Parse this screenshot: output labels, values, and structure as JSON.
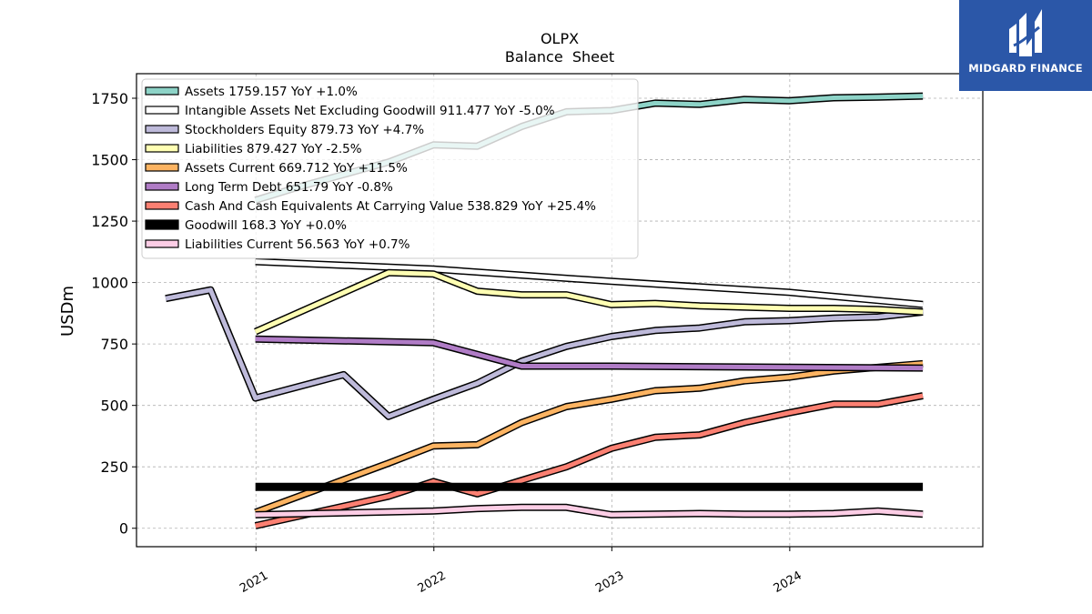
{
  "brand": {
    "name": "MIDGARD FINANCE",
    "bg": "#2b57a8"
  },
  "chart_data": {
    "type": "line",
    "title": "OLPX",
    "subtitle": "Balance  Sheet",
    "ylabel": "USDm",
    "xlabel": "",
    "ylim": [
      -75,
      1850
    ],
    "xlim": [
      "2020-05-01",
      "2025-01-31"
    ],
    "yticks": [
      0,
      250,
      500,
      750,
      1000,
      1250,
      1500,
      1750
    ],
    "xticks": [
      "2021-01-01",
      "2022-01-01",
      "2023-01-01",
      "2024-01-01"
    ],
    "xtick_labels": [
      "2021",
      "2022",
      "2023",
      "2024"
    ],
    "grid": true,
    "legend_position": "upper-left",
    "series": [
      {
        "name": "Assets",
        "legend": "Assets  1759.157 YoY +1.0%",
        "color": "#8dd3c7",
        "width": 5,
        "points": [
          [
            "2020-12-31",
            1335
          ],
          [
            "2021-03-31",
            1390
          ],
          [
            "2021-06-30",
            1440
          ],
          [
            "2021-09-30",
            1490
          ],
          [
            "2021-12-31",
            1560
          ],
          [
            "2022-03-31",
            1555
          ],
          [
            "2022-06-30",
            1635
          ],
          [
            "2022-09-30",
            1695
          ],
          [
            "2022-12-31",
            1700
          ],
          [
            "2023-03-31",
            1730
          ],
          [
            "2023-06-30",
            1725
          ],
          [
            "2023-09-30",
            1745
          ],
          [
            "2023-12-31",
            1740
          ],
          [
            "2024-03-31",
            1752
          ],
          [
            "2024-06-30",
            1755
          ],
          [
            "2024-09-30",
            1759
          ]
        ]
      },
      {
        "name": "Intangible Assets Net Excluding Goodwill",
        "legend": "Intangible Assets Net Excluding Goodwill  911.477 YoY -5.0%",
        "color": "#ffffff",
        "width": 5,
        "points": [
          [
            "2020-12-31",
            1085
          ],
          [
            "2021-12-31",
            1055
          ],
          [
            "2022-12-31",
            1005
          ],
          [
            "2023-12-31",
            960
          ],
          [
            "2024-09-30",
            911
          ]
        ]
      },
      {
        "name": "Stockholders Equity",
        "legend": "Stockholders Equity  879.73 YoY +4.7%",
        "color": "#bebada",
        "width": 5,
        "points": [
          [
            "2020-06-30",
            935
          ],
          [
            "2020-09-30",
            970
          ],
          [
            "2020-12-31",
            530
          ],
          [
            "2021-06-30",
            625
          ],
          [
            "2021-09-30",
            455
          ],
          [
            "2021-12-31",
            525
          ],
          [
            "2022-03-31",
            590
          ],
          [
            "2022-06-30",
            680
          ],
          [
            "2022-09-30",
            740
          ],
          [
            "2022-12-31",
            780
          ],
          [
            "2023-03-31",
            805
          ],
          [
            "2023-06-30",
            815
          ],
          [
            "2023-09-30",
            840
          ],
          [
            "2023-12-31",
            845
          ],
          [
            "2024-03-31",
            855
          ],
          [
            "2024-06-30",
            860
          ],
          [
            "2024-09-30",
            880
          ]
        ]
      },
      {
        "name": "Liabilities",
        "legend": "Liabilities  879.427 YoY -2.5%",
        "color": "#ffffb3",
        "width": 5,
        "points": [
          [
            "2020-12-31",
            800
          ],
          [
            "2021-09-30",
            1040
          ],
          [
            "2021-12-31",
            1035
          ],
          [
            "2022-03-31",
            965
          ],
          [
            "2022-06-30",
            950
          ],
          [
            "2022-09-30",
            950
          ],
          [
            "2022-12-31",
            910
          ],
          [
            "2023-03-31",
            915
          ],
          [
            "2023-06-30",
            905
          ],
          [
            "2023-09-30",
            900
          ],
          [
            "2023-12-31",
            895
          ],
          [
            "2024-03-31",
            895
          ],
          [
            "2024-06-30",
            890
          ],
          [
            "2024-09-30",
            880
          ]
        ]
      },
      {
        "name": "Assets Current",
        "legend": "Assets Current  669.712 YoY +11.5%",
        "color": "#fdb462",
        "width": 5,
        "points": [
          [
            "2020-12-31",
            65
          ],
          [
            "2021-09-30",
            265
          ],
          [
            "2021-12-31",
            335
          ],
          [
            "2022-03-31",
            340
          ],
          [
            "2022-06-30",
            430
          ],
          [
            "2022-09-30",
            495
          ],
          [
            "2022-12-31",
            525
          ],
          [
            "2023-03-31",
            560
          ],
          [
            "2023-06-30",
            570
          ],
          [
            "2023-09-30",
            600
          ],
          [
            "2023-12-31",
            615
          ],
          [
            "2024-03-31",
            640
          ],
          [
            "2024-06-30",
            655
          ],
          [
            "2024-09-30",
            670
          ]
        ]
      },
      {
        "name": "Long Term Debt",
        "legend": "Long Term Debt  651.79 YoY -0.8%",
        "color": "#b07cc6",
        "width": 5,
        "points": [
          [
            "2020-12-31",
            770
          ],
          [
            "2021-12-31",
            755
          ],
          [
            "2022-06-30",
            660
          ],
          [
            "2022-12-31",
            660
          ],
          [
            "2023-12-31",
            655
          ],
          [
            "2024-09-30",
            652
          ]
        ]
      },
      {
        "name": "Cash And Cash Equivalents At Carrying Value",
        "legend": "Cash And Cash Equivalents At Carrying Value  538.829 YoY +25.4%",
        "color": "#fb8072",
        "width": 5,
        "points": [
          [
            "2020-12-31",
            10
          ],
          [
            "2021-09-30",
            130
          ],
          [
            "2021-12-31",
            190
          ],
          [
            "2022-03-31",
            140
          ],
          [
            "2022-06-30",
            195
          ],
          [
            "2022-09-30",
            250
          ],
          [
            "2022-12-31",
            325
          ],
          [
            "2023-03-31",
            370
          ],
          [
            "2023-06-30",
            380
          ],
          [
            "2023-09-30",
            430
          ],
          [
            "2023-12-31",
            470
          ],
          [
            "2024-03-31",
            505
          ],
          [
            "2024-06-30",
            505
          ],
          [
            "2024-09-30",
            539
          ]
        ]
      },
      {
        "name": "Goodwill",
        "legend": "Goodwill  168.3 YoY +0.0%",
        "color": "#000000",
        "width": 9,
        "points": [
          [
            "2020-12-31",
            168.3
          ],
          [
            "2024-09-30",
            168.3
          ]
        ]
      },
      {
        "name": "Liabilities Current",
        "legend": "Liabilities Current  56.563 YoY +0.7%",
        "color": "#fccde5",
        "width": 5,
        "points": [
          [
            "2020-12-31",
            55
          ],
          [
            "2021-12-31",
            70
          ],
          [
            "2022-03-31",
            80
          ],
          [
            "2022-06-30",
            85
          ],
          [
            "2022-09-30",
            85
          ],
          [
            "2022-12-31",
            55
          ],
          [
            "2023-06-30",
            60
          ],
          [
            "2023-09-30",
            57
          ],
          [
            "2023-12-31",
            57
          ],
          [
            "2024-03-31",
            60
          ],
          [
            "2024-06-30",
            70
          ],
          [
            "2024-09-30",
            57
          ]
        ]
      }
    ]
  }
}
